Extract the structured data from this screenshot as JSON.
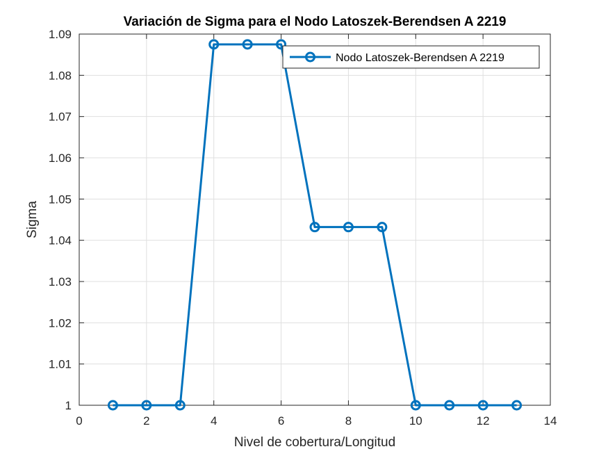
{
  "chart_data": {
    "type": "line",
    "title": "Variación de Sigma para el Nodo Latoszek-Berendsen A 2219",
    "xlabel": "Nivel de cobertura/Longitud",
    "ylabel": "Sigma",
    "xlim": [
      0,
      14
    ],
    "ylim": [
      1,
      1.09
    ],
    "xticks": [
      0,
      2,
      4,
      6,
      8,
      10,
      12,
      14
    ],
    "yticks": [
      1,
      1.01,
      1.02,
      1.03,
      1.04,
      1.05,
      1.06,
      1.07,
      1.08,
      1.09
    ],
    "xtick_labels": [
      "0",
      "2",
      "4",
      "6",
      "8",
      "10",
      "12",
      "14"
    ],
    "ytick_labels": [
      "1",
      "1.01",
      "1.02",
      "1.03",
      "1.04",
      "1.05",
      "1.06",
      "1.07",
      "1.08",
      "1.09"
    ],
    "grid": true,
    "legend_position": "top-right",
    "series": [
      {
        "name": "Nodo Latoszek-Berendsen A 2219",
        "color": "#0072BD",
        "marker": "circle",
        "x": [
          1,
          2,
          3,
          4,
          5,
          6,
          7,
          8,
          9,
          10,
          11,
          12,
          13
        ],
        "y": [
          1.0,
          1.0,
          1.0,
          1.0875,
          1.0875,
          1.0875,
          1.0432,
          1.0432,
          1.0432,
          1.0,
          1.0,
          1.0,
          1.0
        ]
      }
    ]
  }
}
